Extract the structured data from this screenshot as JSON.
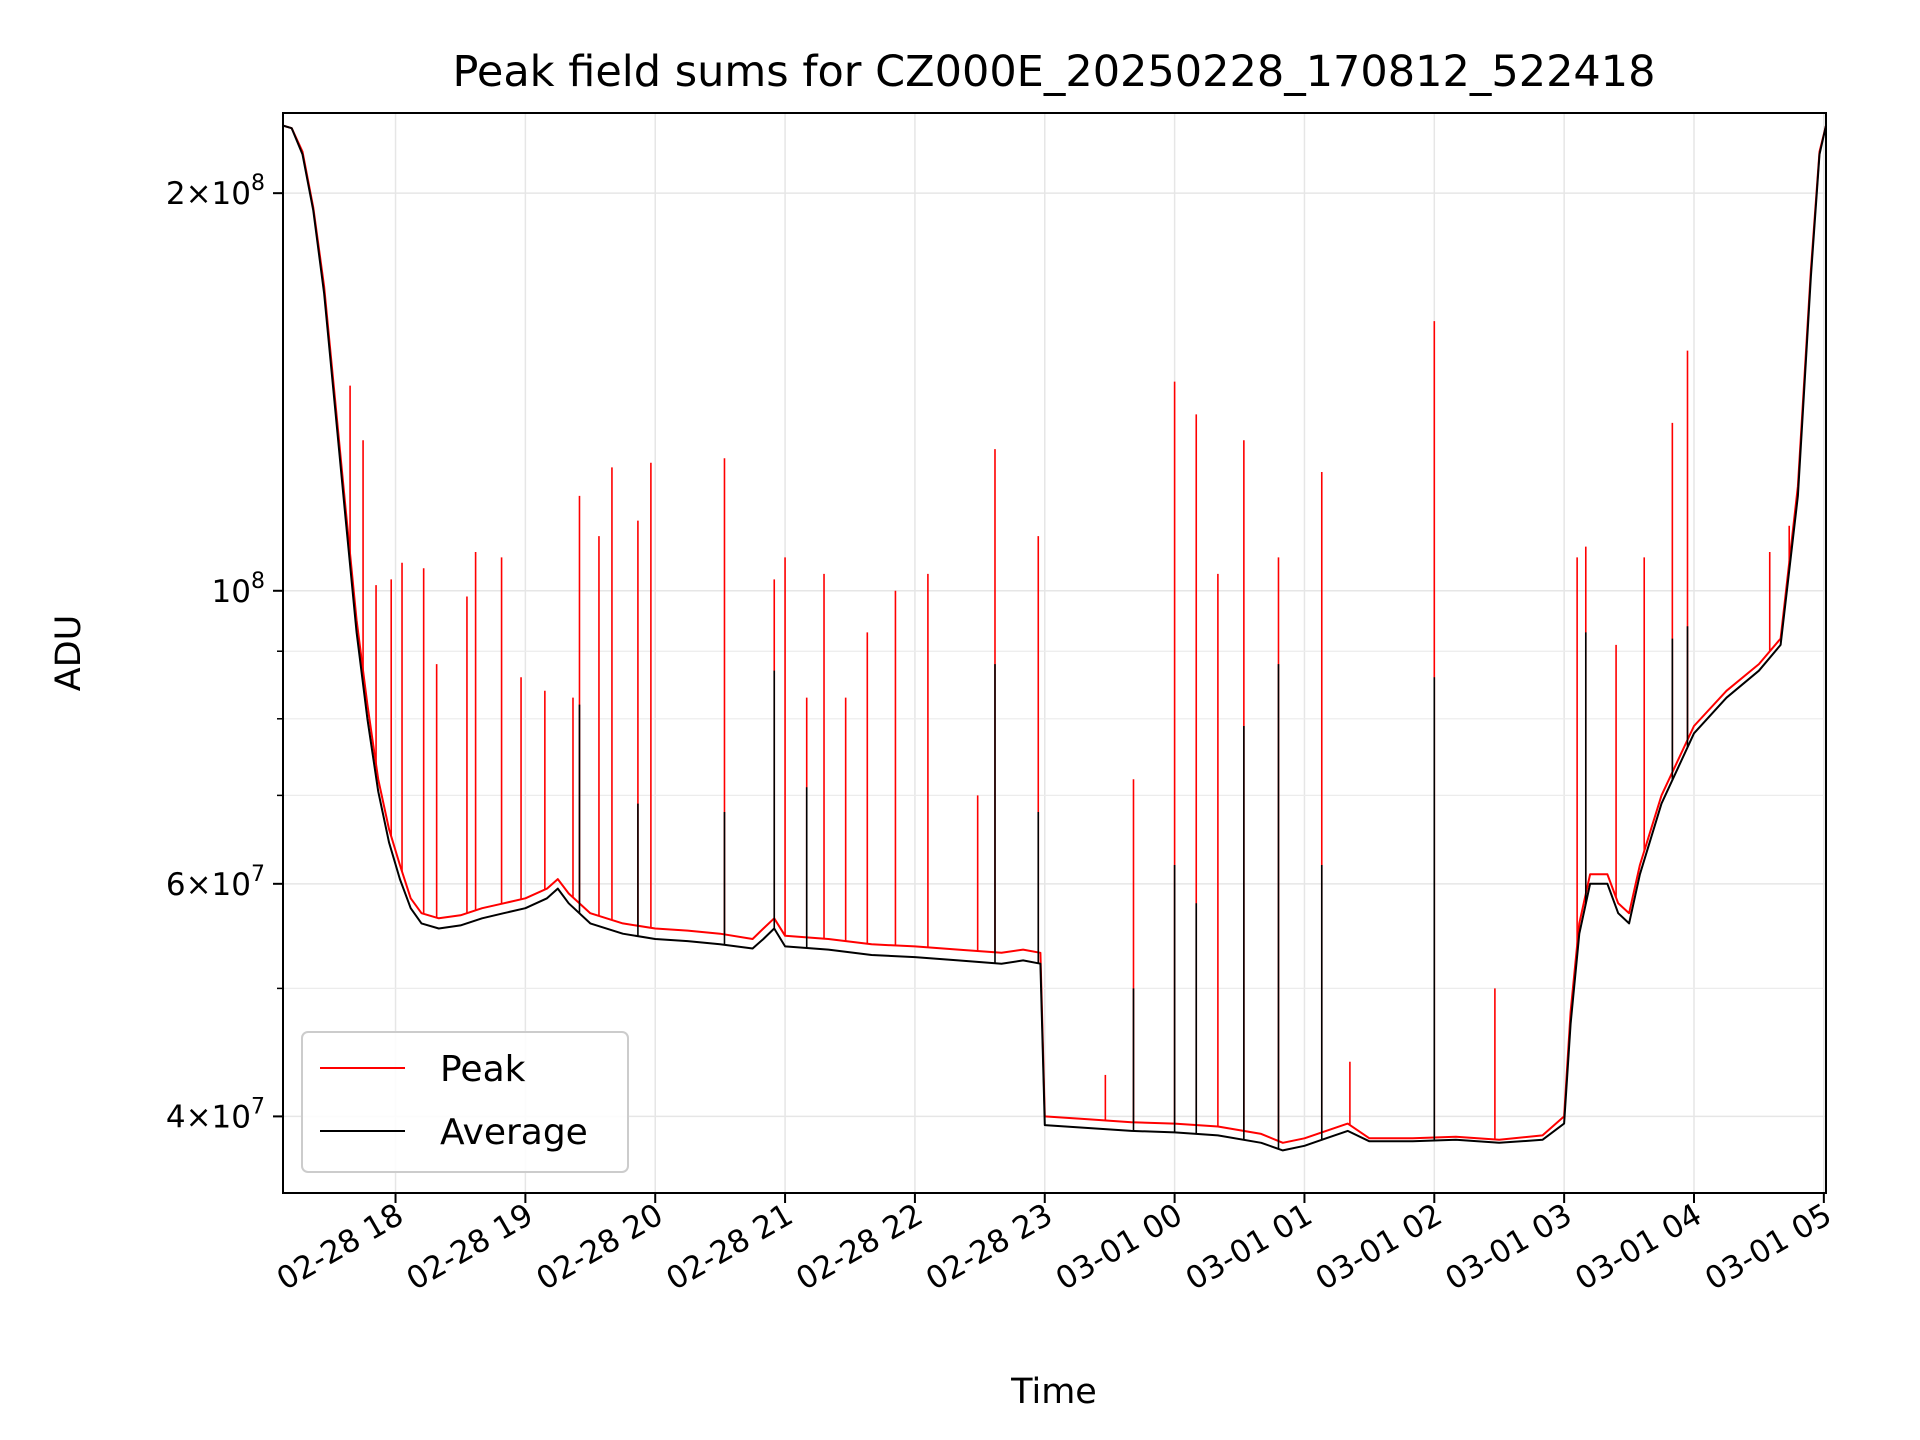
{
  "chart_data": {
    "type": "line",
    "title": "Peak field sums for CZ000E_20250228_170812_522418",
    "xlabel": "Time",
    "ylabel": "ADU",
    "y_scale": "log",
    "ylim": [
      35000000,
      230000000
    ],
    "xlim": [
      "2025-02-28 17:08",
      "2025-03-01 05:01"
    ],
    "grid": true,
    "legend_position": "lower-left",
    "x_ticks": [
      {
        "value": "2025-02-28 18:00",
        "label": "02-28 18"
      },
      {
        "value": "2025-02-28 19:00",
        "label": "02-28 19"
      },
      {
        "value": "2025-02-28 20:00",
        "label": "02-28 20"
      },
      {
        "value": "2025-02-28 21:00",
        "label": "02-28 21"
      },
      {
        "value": "2025-02-28 22:00",
        "label": "02-28 22"
      },
      {
        "value": "2025-02-28 23:00",
        "label": "02-28 23"
      },
      {
        "value": "2025-03-01 00:00",
        "label": "03-01 00"
      },
      {
        "value": "2025-03-01 01:00",
        "label": "03-01 01"
      },
      {
        "value": "2025-03-01 02:00",
        "label": "03-01 02"
      },
      {
        "value": "2025-03-01 03:00",
        "label": "03-01 03"
      },
      {
        "value": "2025-03-01 04:00",
        "label": "03-01 04"
      },
      {
        "value": "2025-03-01 05:00",
        "label": "03-01 05"
      }
    ],
    "y_ticks": [
      {
        "value": 40000000,
        "mantissa": "4",
        "exponent": "7"
      },
      {
        "value": 60000000,
        "mantissa": "6",
        "exponent": "7"
      },
      {
        "value": 100000000,
        "mantissa": "",
        "exponent": "8"
      },
      {
        "value": 200000000,
        "mantissa": "2",
        "exponent": "8"
      }
    ],
    "y_minor_ticks": [
      50000000,
      70000000,
      80000000,
      90000000
    ],
    "series": [
      {
        "name": "Peak",
        "color": "#ff0000",
        "points": [
          [
            "2025-02-28 17:08",
            225000000
          ],
          [
            "2025-02-28 17:12",
            224000000
          ],
          [
            "2025-02-28 17:17",
            215000000
          ],
          [
            "2025-02-28 17:22",
            195000000
          ],
          [
            "2025-02-28 17:27",
            170000000
          ],
          [
            "2025-02-28 17:32",
            140000000
          ],
          [
            "2025-02-28 17:37",
            115000000
          ],
          [
            "2025-02-28 17:42",
            95000000
          ],
          [
            "2025-02-28 17:47",
            82000000
          ],
          [
            "2025-02-28 17:52",
            72000000
          ],
          [
            "2025-02-28 17:57",
            66000000
          ],
          [
            "2025-02-28 18:02",
            62000000
          ],
          [
            "2025-02-28 18:07",
            58500000
          ],
          [
            "2025-02-28 18:12",
            57000000
          ],
          [
            "2025-02-28 18:20",
            56500000
          ],
          [
            "2025-02-28 18:30",
            56800000
          ],
          [
            "2025-02-28 18:40",
            57500000
          ],
          [
            "2025-02-28 18:50",
            58000000
          ],
          [
            "2025-02-28 19:00",
            58500000
          ],
          [
            "2025-02-28 19:10",
            59500000
          ],
          [
            "2025-02-28 19:15",
            60500000
          ],
          [
            "2025-02-28 19:20",
            59000000
          ],
          [
            "2025-02-28 19:30",
            57000000
          ],
          [
            "2025-02-28 19:45",
            56000000
          ],
          [
            "2025-02-28 20:00",
            55500000
          ],
          [
            "2025-02-28 20:15",
            55300000
          ],
          [
            "2025-02-28 20:30",
            55000000
          ],
          [
            "2025-02-28 20:45",
            54500000
          ],
          [
            "2025-02-28 20:50",
            55500000
          ],
          [
            "2025-02-28 20:55",
            56500000
          ],
          [
            "2025-02-28 21:00",
            54800000
          ],
          [
            "2025-02-28 21:20",
            54500000
          ],
          [
            "2025-02-28 21:40",
            54000000
          ],
          [
            "2025-02-28 22:00",
            53800000
          ],
          [
            "2025-02-28 22:20",
            53500000
          ],
          [
            "2025-02-28 22:40",
            53200000
          ],
          [
            "2025-02-28 22:50",
            53500000
          ],
          [
            "2025-02-28 22:58",
            53200000
          ],
          [
            "2025-02-28 23:00",
            40000000
          ],
          [
            "2025-02-28 23:20",
            39800000
          ],
          [
            "2025-02-28 23:40",
            39600000
          ],
          [
            "2025-03-01 00:00",
            39500000
          ],
          [
            "2025-03-01 00:20",
            39300000
          ],
          [
            "2025-03-01 00:40",
            38800000
          ],
          [
            "2025-03-01 00:50",
            38200000
          ],
          [
            "2025-03-01 01:00",
            38500000
          ],
          [
            "2025-03-01 01:10",
            39000000
          ],
          [
            "2025-03-01 01:20",
            39500000
          ],
          [
            "2025-03-01 01:30",
            38500000
          ],
          [
            "2025-03-01 01:50",
            38500000
          ],
          [
            "2025-03-01 02:10",
            38600000
          ],
          [
            "2025-03-01 02:30",
            38400000
          ],
          [
            "2025-03-01 02:50",
            38700000
          ],
          [
            "2025-03-01 03:00",
            40000000
          ],
          [
            "2025-03-01 03:03",
            48000000
          ],
          [
            "2025-03-01 03:07",
            56000000
          ],
          [
            "2025-03-01 03:12",
            61000000
          ],
          [
            "2025-03-01 03:20",
            61000000
          ],
          [
            "2025-03-01 03:25",
            58000000
          ],
          [
            "2025-03-01 03:30",
            57000000
          ],
          [
            "2025-03-01 03:35",
            62000000
          ],
          [
            "2025-03-01 03:45",
            70000000
          ],
          [
            "2025-03-01 04:00",
            79000000
          ],
          [
            "2025-03-01 04:15",
            84000000
          ],
          [
            "2025-03-01 04:30",
            88000000
          ],
          [
            "2025-03-01 04:40",
            92000000
          ],
          [
            "2025-03-01 04:48",
            120000000
          ],
          [
            "2025-03-01 04:54",
            175000000
          ],
          [
            "2025-03-01 04:58",
            215000000
          ],
          [
            "2025-03-01 05:01",
            225000000
          ]
        ],
        "spikes": [
          [
            "2025-02-28 17:39",
            143000000
          ],
          [
            "2025-02-28 17:45",
            130000000
          ],
          [
            "2025-02-28 17:51",
            101000000
          ],
          [
            "2025-02-28 17:58",
            102000000
          ],
          [
            "2025-02-28 18:03",
            105000000
          ],
          [
            "2025-02-28 18:13",
            104000000
          ],
          [
            "2025-02-28 18:19",
            88000000
          ],
          [
            "2025-02-28 18:33",
            99000000
          ],
          [
            "2025-02-28 18:37",
            107000000
          ],
          [
            "2025-02-28 18:49",
            106000000
          ],
          [
            "2025-02-28 18:58",
            86000000
          ],
          [
            "2025-02-28 19:09",
            84000000
          ],
          [
            "2025-02-28 19:22",
            83000000
          ],
          [
            "2025-02-28 19:25",
            118000000
          ],
          [
            "2025-02-28 19:34",
            110000000
          ],
          [
            "2025-02-28 19:40",
            124000000
          ],
          [
            "2025-02-28 19:52",
            113000000
          ],
          [
            "2025-02-28 19:58",
            125000000
          ],
          [
            "2025-02-28 20:32",
            126000000
          ],
          [
            "2025-02-28 20:55",
            102000000
          ],
          [
            "2025-02-28 21:00",
            106000000
          ],
          [
            "2025-02-28 21:10",
            83000000
          ],
          [
            "2025-02-28 21:18",
            103000000
          ],
          [
            "2025-02-28 21:28",
            83000000
          ],
          [
            "2025-02-28 21:38",
            93000000
          ],
          [
            "2025-02-28 21:51",
            100000000
          ],
          [
            "2025-02-28 22:06",
            103000000
          ],
          [
            "2025-02-28 22:29",
            70000000
          ],
          [
            "2025-02-28 22:37",
            128000000
          ],
          [
            "2025-02-28 22:57",
            110000000
          ],
          [
            "2025-02-28 23:28",
            43000000
          ],
          [
            "2025-02-28 23:41",
            72000000
          ],
          [
            "2025-03-01 00:00",
            144000000
          ],
          [
            "2025-03-01 00:10",
            136000000
          ],
          [
            "2025-03-01 00:20",
            103000000
          ],
          [
            "2025-03-01 00:32",
            130000000
          ],
          [
            "2025-03-01 00:48",
            106000000
          ],
          [
            "2025-03-01 01:08",
            123000000
          ],
          [
            "2025-03-01 01:21",
            44000000
          ],
          [
            "2025-03-01 02:00",
            160000000
          ],
          [
            "2025-03-01 02:28",
            50000000
          ],
          [
            "2025-03-01 03:06",
            106000000
          ],
          [
            "2025-03-01 03:10",
            108000000
          ],
          [
            "2025-03-01 03:24",
            91000000
          ],
          [
            "2025-03-01 03:37",
            106000000
          ],
          [
            "2025-03-01 03:50",
            134000000
          ],
          [
            "2025-03-01 03:57",
            152000000
          ],
          [
            "2025-03-01 04:35",
            107000000
          ],
          [
            "2025-03-01 04:44",
            112000000
          ]
        ]
      },
      {
        "name": "Average",
        "color": "#000000",
        "points": [
          [
            "2025-02-28 17:08",
            225000000
          ],
          [
            "2025-02-28 17:12",
            224000000
          ],
          [
            "2025-02-28 17:17",
            214000000
          ],
          [
            "2025-02-28 17:22",
            194000000
          ],
          [
            "2025-02-28 17:27",
            168000000
          ],
          [
            "2025-02-28 17:32",
            138000000
          ],
          [
            "2025-02-28 17:37",
            113000000
          ],
          [
            "2025-02-28 17:42",
            93000000
          ],
          [
            "2025-02-28 17:47",
            80000000
          ],
          [
            "2025-02-28 17:52",
            70500000
          ],
          [
            "2025-02-28 17:57",
            64500000
          ],
          [
            "2025-02-28 18:02",
            60500000
          ],
          [
            "2025-02-28 18:07",
            57500000
          ],
          [
            "2025-02-28 18:12",
            56000000
          ],
          [
            "2025-02-28 18:20",
            55500000
          ],
          [
            "2025-02-28 18:30",
            55800000
          ],
          [
            "2025-02-28 18:40",
            56500000
          ],
          [
            "2025-02-28 18:50",
            57000000
          ],
          [
            "2025-02-28 19:00",
            57500000
          ],
          [
            "2025-02-28 19:10",
            58500000
          ],
          [
            "2025-02-28 19:15",
            59500000
          ],
          [
            "2025-02-28 19:20",
            58000000
          ],
          [
            "2025-02-28 19:30",
            56000000
          ],
          [
            "2025-02-28 19:45",
            55000000
          ],
          [
            "2025-02-28 20:00",
            54500000
          ],
          [
            "2025-02-28 20:15",
            54300000
          ],
          [
            "2025-02-28 20:30",
            54000000
          ],
          [
            "2025-02-28 20:45",
            53600000
          ],
          [
            "2025-02-28 20:50",
            54500000
          ],
          [
            "2025-02-28 20:55",
            55500000
          ],
          [
            "2025-02-28 21:00",
            53800000
          ],
          [
            "2025-02-28 21:20",
            53500000
          ],
          [
            "2025-02-28 21:40",
            53000000
          ],
          [
            "2025-02-28 22:00",
            52800000
          ],
          [
            "2025-02-28 22:20",
            52500000
          ],
          [
            "2025-02-28 22:40",
            52200000
          ],
          [
            "2025-02-28 22:50",
            52500000
          ],
          [
            "2025-02-28 22:58",
            52200000
          ],
          [
            "2025-02-28 23:00",
            39400000
          ],
          [
            "2025-02-28 23:20",
            39200000
          ],
          [
            "2025-02-28 23:40",
            39000000
          ],
          [
            "2025-03-01 00:00",
            38900000
          ],
          [
            "2025-03-01 00:20",
            38700000
          ],
          [
            "2025-03-01 00:40",
            38200000
          ],
          [
            "2025-03-01 00:50",
            37700000
          ],
          [
            "2025-03-01 01:00",
            38000000
          ],
          [
            "2025-03-01 01:10",
            38500000
          ],
          [
            "2025-03-01 01:20",
            39000000
          ],
          [
            "2025-03-01 01:30",
            38300000
          ],
          [
            "2025-03-01 01:50",
            38300000
          ],
          [
            "2025-03-01 02:10",
            38400000
          ],
          [
            "2025-03-01 02:30",
            38200000
          ],
          [
            "2025-03-01 02:50",
            38400000
          ],
          [
            "2025-03-01 03:00",
            39500000
          ],
          [
            "2025-03-01 03:03",
            47000000
          ],
          [
            "2025-03-01 03:07",
            55000000
          ],
          [
            "2025-03-01 03:12",
            60000000
          ],
          [
            "2025-03-01 03:20",
            60000000
          ],
          [
            "2025-03-01 03:25",
            57000000
          ],
          [
            "2025-03-01 03:30",
            56000000
          ],
          [
            "2025-03-01 03:35",
            61000000
          ],
          [
            "2025-03-01 03:45",
            69000000
          ],
          [
            "2025-03-01 04:00",
            78000000
          ],
          [
            "2025-03-01 04:15",
            83000000
          ],
          [
            "2025-03-01 04:30",
            87000000
          ],
          [
            "2025-03-01 04:40",
            91000000
          ],
          [
            "2025-03-01 04:48",
            118000000
          ],
          [
            "2025-03-01 04:54",
            173000000
          ],
          [
            "2025-03-01 04:58",
            214000000
          ],
          [
            "2025-03-01 05:01",
            225000000
          ]
        ],
        "spikes": [
          [
            "2025-02-28 19:25",
            82000000
          ],
          [
            "2025-02-28 19:52",
            69000000
          ],
          [
            "2025-02-28 20:32",
            68000000
          ],
          [
            "2025-02-28 20:55",
            87000000
          ],
          [
            "2025-02-28 21:10",
            71000000
          ],
          [
            "2025-02-28 22:37",
            88000000
          ],
          [
            "2025-02-28 22:57",
            68000000
          ],
          [
            "2025-02-28 23:41",
            50000000
          ],
          [
            "2025-03-01 00:00",
            62000000
          ],
          [
            "2025-03-01 00:10",
            58000000
          ],
          [
            "2025-03-01 00:32",
            79000000
          ],
          [
            "2025-03-01 00:48",
            88000000
          ],
          [
            "2025-03-01 01:08",
            62000000
          ],
          [
            "2025-03-01 02:00",
            86000000
          ],
          [
            "2025-03-01 03:10",
            93000000
          ],
          [
            "2025-03-01 03:50",
            92000000
          ],
          [
            "2025-03-01 03:57",
            94000000
          ]
        ]
      }
    ]
  }
}
